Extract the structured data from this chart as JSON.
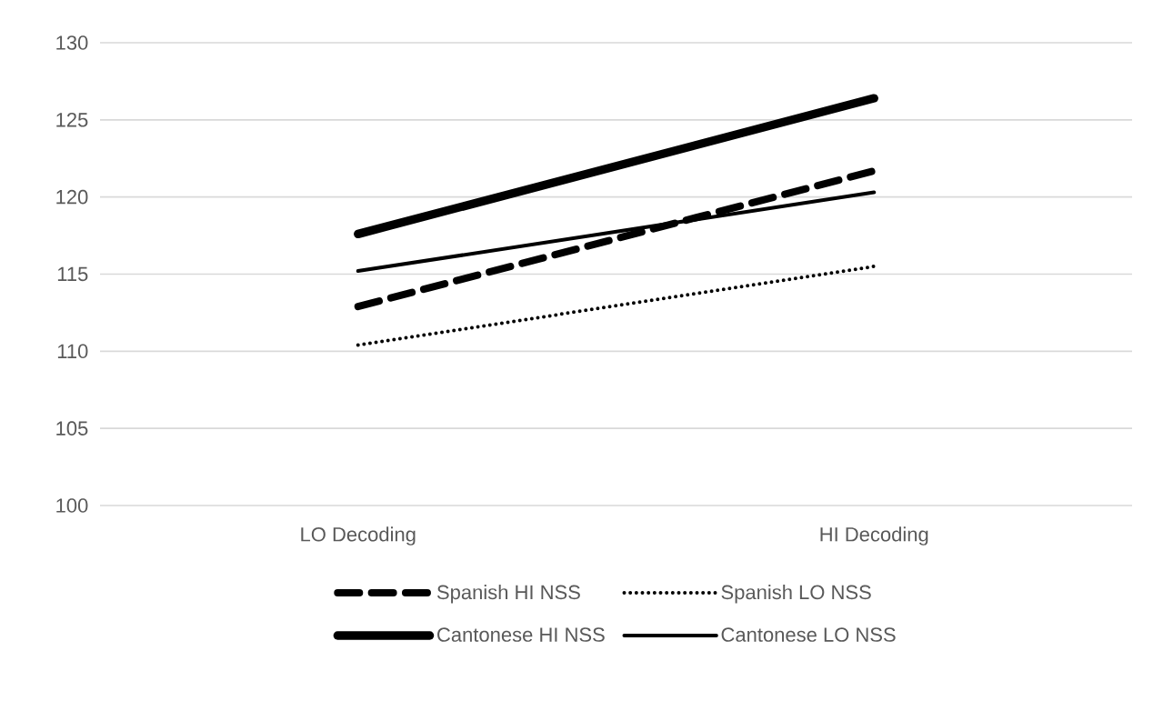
{
  "chart_data": {
    "type": "line",
    "categories": [
      "LO Decoding",
      "HI Decoding"
    ],
    "ylim": [
      100,
      130
    ],
    "yticks": [
      100,
      105,
      110,
      115,
      120,
      125,
      130
    ],
    "grid": "y",
    "legend": "bottom",
    "marker": "none",
    "series": [
      {
        "name": "Spanish HI NSS",
        "color": "#000000",
        "line_style": "dashed",
        "values": [
          112.9,
          121.7
        ]
      },
      {
        "name": "Spanish LO NSS",
        "color": "#000000",
        "line_style": "dotted",
        "values": [
          110.4,
          115.5
        ]
      },
      {
        "name": "Cantonese HI NSS",
        "color": "#000000",
        "line_style": "solid",
        "values": [
          117.6,
          126.4
        ]
      },
      {
        "name": "Cantonese LO NSS",
        "color": "#000000",
        "line_style": "solid",
        "values": [
          115.2,
          120.3
        ]
      }
    ]
  }
}
